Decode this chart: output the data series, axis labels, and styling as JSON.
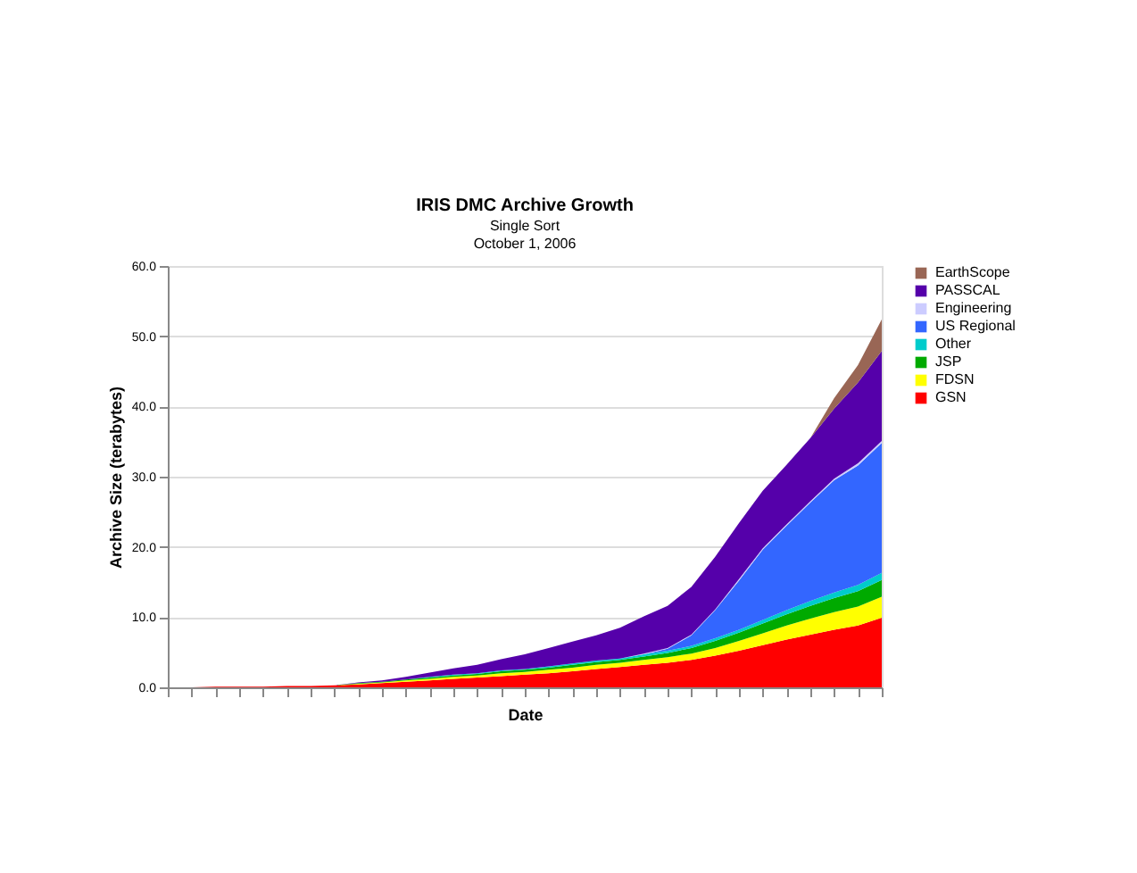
{
  "chart_data": {
    "type": "area",
    "stacked": true,
    "title": "IRIS DMC Archive Growth",
    "subtitle": [
      "Single Sort",
      "October 1, 2006"
    ],
    "xlabel": "Date",
    "ylabel": "Archive Size (terabytes)",
    "categories": [
      null,
      null,
      null,
      null,
      null,
      null,
      null,
      null,
      null,
      null,
      null,
      null,
      null,
      null,
      null,
      null,
      null,
      null,
      null,
      null,
      null,
      null,
      null,
      null,
      null,
      null,
      null,
      null,
      null,
      null,
      null
    ],
    "series": [
      {
        "name": "GSN",
        "color": "#ff0000",
        "values": [
          0,
          0,
          0.1,
          0.1,
          0.1,
          0.2,
          0.2,
          0.3,
          0.4,
          0.6,
          0.8,
          1.0,
          1.2,
          1.4,
          1.6,
          1.8,
          2.0,
          2.3,
          2.6,
          2.9,
          3.2,
          3.5,
          3.9,
          4.5,
          5.2,
          6.0,
          6.8,
          7.5,
          8.2,
          8.8,
          9.9
        ]
      },
      {
        "name": "FDSN",
        "color": "#ffff00",
        "values": [
          0,
          0,
          0,
          0,
          0,
          0,
          0,
          0,
          0.1,
          0.1,
          0.2,
          0.2,
          0.3,
          0.3,
          0.4,
          0.4,
          0.5,
          0.5,
          0.6,
          0.6,
          0.7,
          0.8,
          0.9,
          1.1,
          1.4,
          1.7,
          2.0,
          2.3,
          2.5,
          2.7,
          3.0
        ]
      },
      {
        "name": "JSP",
        "color": "#00aa00",
        "values": [
          0,
          0,
          0,
          0,
          0,
          0,
          0,
          0,
          0.1,
          0.1,
          0.1,
          0.2,
          0.2,
          0.2,
          0.3,
          0.3,
          0.3,
          0.4,
          0.4,
          0.4,
          0.5,
          0.6,
          0.8,
          1.0,
          1.2,
          1.4,
          1.6,
          1.8,
          2.0,
          2.2,
          2.4
        ]
      },
      {
        "name": "Other",
        "color": "#00cccc",
        "values": [
          0,
          0,
          0,
          0,
          0,
          0,
          0,
          0,
          0,
          0,
          0,
          0.1,
          0.1,
          0.1,
          0.1,
          0.1,
          0.2,
          0.2,
          0.2,
          0.2,
          0.3,
          0.3,
          0.3,
          0.4,
          0.4,
          0.5,
          0.6,
          0.7,
          0.8,
          0.9,
          1.0
        ]
      },
      {
        "name": "US Regional",
        "color": "#3366ff",
        "values": [
          0,
          0,
          0,
          0,
          0,
          0,
          0,
          0,
          0,
          0,
          0,
          0,
          0,
          0,
          0,
          0,
          0,
          0,
          0,
          0,
          0,
          0.3,
          1.5,
          4.0,
          7.0,
          10.0,
          12.0,
          14.0,
          16.0,
          17.0,
          18.5
        ]
      },
      {
        "name": "Engineering",
        "color": "#ccccff",
        "values": [
          0,
          0,
          0,
          0,
          0,
          0,
          0,
          0,
          0,
          0,
          0,
          0,
          0,
          0,
          0,
          0,
          0,
          0,
          0,
          0,
          0.1,
          0.1,
          0.1,
          0.1,
          0.2,
          0.2,
          0.2,
          0.2,
          0.2,
          0.3,
          0.3
        ]
      },
      {
        "name": "PASSCAL",
        "color": "#5500aa",
        "values": [
          0,
          0,
          0,
          0,
          0,
          0,
          0,
          0,
          0.1,
          0.2,
          0.4,
          0.6,
          0.9,
          1.2,
          1.6,
          2.1,
          2.6,
          3.1,
          3.6,
          4.4,
          5.3,
          6.0,
          6.8,
          7.5,
          8.0,
          8.2,
          8.5,
          9.0,
          10.0,
          11.5,
          12.8
        ]
      },
      {
        "name": "EarthScope",
        "color": "#996655",
        "values": [
          0,
          0,
          0,
          0,
          0,
          0,
          0,
          0,
          0,
          0,
          0,
          0,
          0,
          0,
          0,
          0,
          0,
          0,
          0,
          0,
          0,
          0,
          0,
          0,
          0,
          0,
          0,
          0,
          1.5,
          2.5,
          4.5
        ]
      }
    ],
    "ylim": [
      0,
      60
    ],
    "yticks": [
      {
        "value": 0,
        "label": "0.0"
      },
      {
        "value": 10,
        "label": "10.0"
      },
      {
        "value": 20,
        "label": "20.0"
      },
      {
        "value": 30,
        "label": "30.0"
      },
      {
        "value": 40,
        "label": "40.0"
      },
      {
        "value": 50,
        "label": "50.0"
      },
      {
        "value": 60,
        "label": "60.0"
      }
    ],
    "grid": "y",
    "legend": "right"
  }
}
